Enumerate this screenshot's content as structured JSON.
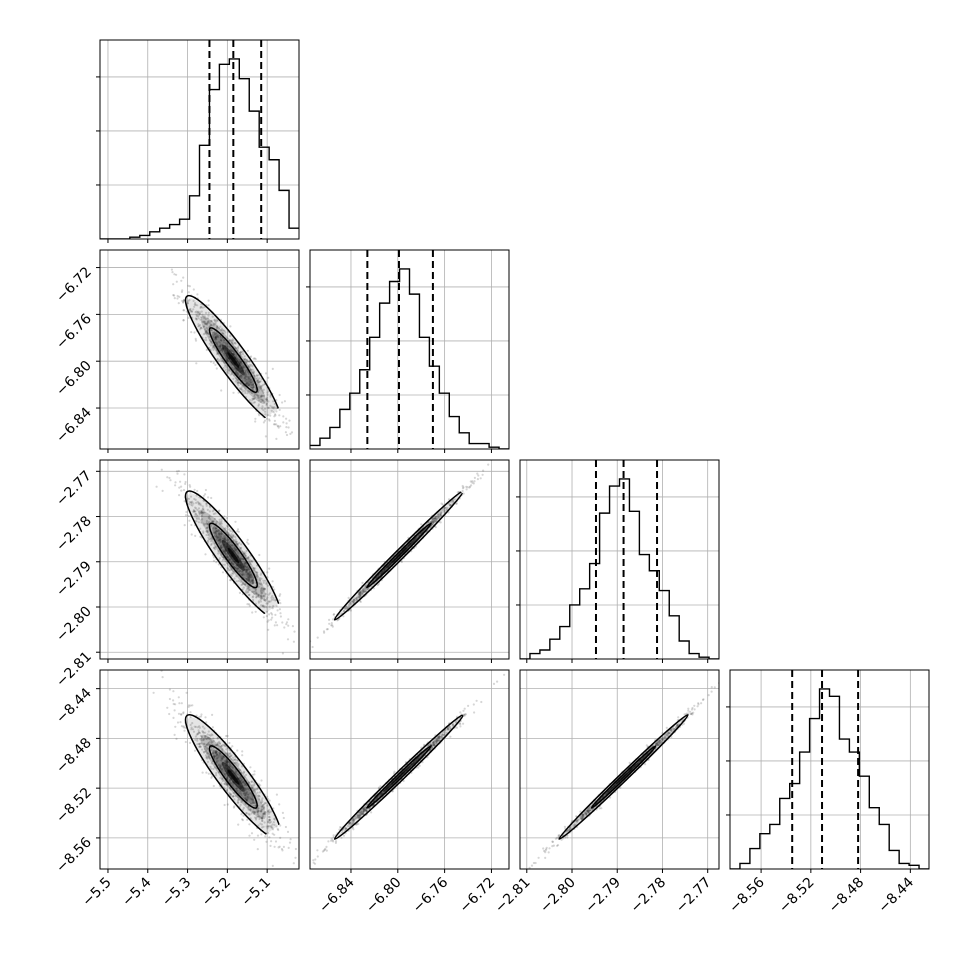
{
  "chart_data": {
    "type": "corner",
    "title": "",
    "grid": true,
    "parameters": [
      {
        "name": "",
        "range": [
          -5.52,
          -5.02
        ],
        "ticks": [
          -5.5,
          -5.4,
          -5.3,
          -5.2,
          -5.1
        ],
        "tick_labels": [
          "−5.5",
          "−5.4",
          "−5.3",
          "−5.2",
          "−5.1"
        ],
        "quantiles": [
          -5.245,
          -5.185,
          -5.115
        ],
        "hist_bins": [
          0,
          0,
          0,
          1,
          2,
          4,
          6,
          8,
          11,
          24,
          52,
          83,
          97,
          100,
          89,
          71,
          51,
          44,
          27,
          6
        ],
        "hist_label_ticks": [
          0.3,
          0.6,
          0.9
        ]
      },
      {
        "name": "",
        "range": [
          -6.875,
          -6.705
        ],
        "ticks": [
          -6.84,
          -6.8,
          -6.76,
          -6.72
        ],
        "tick_labels": [
          "−6.84",
          "−6.80",
          "−6.76",
          "−6.72"
        ],
        "quantiles": [
          -6.826,
          -6.799,
          -6.77
        ],
        "hist_bins": [
          2,
          6,
          12,
          22,
          31,
          44,
          62,
          81,
          93,
          100,
          86,
          62,
          46,
          31,
          18,
          9,
          3,
          3,
          1,
          0
        ],
        "hist_label_ticks": [
          0.3,
          0.6,
          0.9
        ]
      },
      {
        "name": "",
        "range": [
          -2.8115,
          -2.7675
        ],
        "ticks": [
          -2.81,
          -2.8,
          -2.79,
          -2.78,
          -2.77
        ],
        "tick_labels": [
          "−2.81",
          "−2.80",
          "−2.79",
          "−2.78",
          "−2.77"
        ],
        "quantiles": [
          -2.7947,
          -2.7886,
          -2.7812
        ],
        "hist_bins": [
          0,
          3,
          5,
          11,
          18,
          30,
          39,
          53,
          81,
          96,
          100,
          82,
          58,
          49,
          38,
          24,
          10,
          3,
          1,
          0
        ],
        "hist_label_ticks": [
          0.3,
          0.6,
          0.9
        ]
      },
      {
        "name": "",
        "range": [
          -8.585,
          -8.425
        ],
        "ticks": [
          -8.56,
          -8.52,
          -8.48,
          -8.44
        ],
        "tick_labels": [
          "−8.56",
          "−8.52",
          "−8.48",
          "−8.44"
        ],
        "quantiles": [
          -8.535,
          -8.511,
          -8.482
        ],
        "hist_bins": [
          0,
          3,
          11,
          19,
          24,
          38,
          46,
          63,
          81,
          97,
          93,
          70,
          63,
          50,
          33,
          24,
          10,
          3,
          2,
          0
        ],
        "hist_label_ticks": [
          0.3,
          0.6,
          0.9
        ]
      }
    ],
    "pairs": [
      {
        "x": 0,
        "y": 1,
        "mean": [
          -5.185,
          -6.799
        ],
        "sd": [
          0.048,
          0.022
        ],
        "corr": -0.93
      },
      {
        "x": 0,
        "y": 2,
        "mean": [
          -5.185,
          -2.7886
        ],
        "sd": [
          0.048,
          0.0057
        ],
        "corr": -0.92
      },
      {
        "x": 1,
        "y": 2,
        "mean": [
          -6.799,
          -2.7886
        ],
        "sd": [
          0.022,
          0.0057
        ],
        "corr": 0.995
      },
      {
        "x": 0,
        "y": 3,
        "mean": [
          -5.185,
          -8.511
        ],
        "sd": [
          0.048,
          0.02
        ],
        "corr": -0.92
      },
      {
        "x": 1,
        "y": 3,
        "mean": [
          -6.799,
          -8.511
        ],
        "sd": [
          0.022,
          0.02
        ],
        "corr": 0.995
      },
      {
        "x": 2,
        "y": 3,
        "mean": [
          -2.7886,
          -8.511
        ],
        "sd": [
          0.0057,
          0.02
        ],
        "corr": 0.996
      }
    ],
    "contour_levels_sigma": [
      1.0,
      2.0
    ],
    "colors": {
      "line": "#000000",
      "grid": "#b0b0b0",
      "points": "#444444",
      "density": "#000000"
    }
  }
}
